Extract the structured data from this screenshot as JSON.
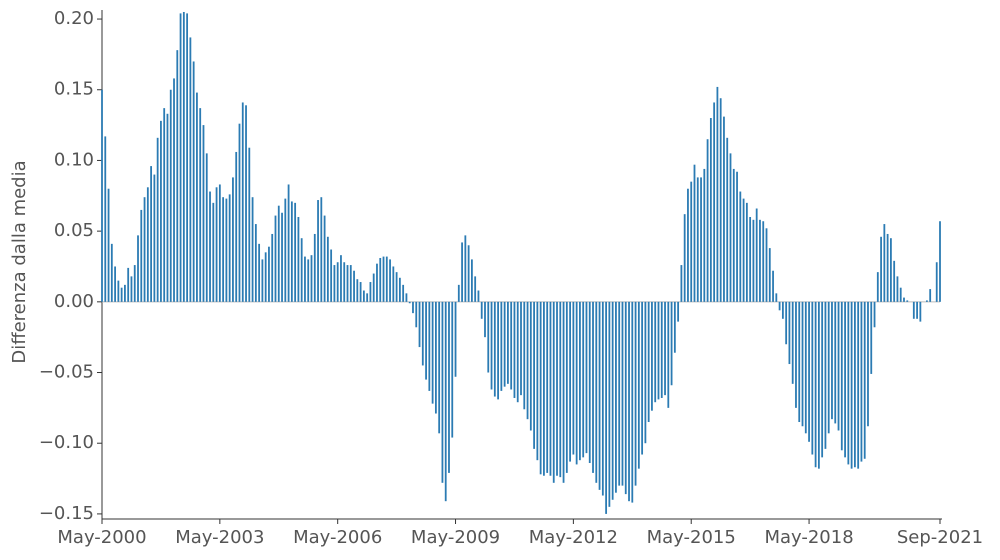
{
  "chart_data": {
    "type": "bar",
    "y_label": "Differenza dalla media",
    "color": "#2b7bb3",
    "xlim": [
      "2000-05",
      "2021-09"
    ],
    "xticks": [
      {
        "value": "2000-05",
        "label": "May-2000"
      },
      {
        "value": "2003-05",
        "label": "May-2003"
      },
      {
        "value": "2006-05",
        "label": "May-2006"
      },
      {
        "value": "2009-05",
        "label": "May-2009"
      },
      {
        "value": "2012-05",
        "label": "May-2012"
      },
      {
        "value": "2015-05",
        "label": "May-2015"
      },
      {
        "value": "2018-05",
        "label": "May-2018"
      },
      {
        "value": "2021-09",
        "label": "Sep-2021"
      }
    ],
    "ylim": [
      -0.1536,
      0.2064
    ],
    "yticks": [
      {
        "value": -0.15,
        "label": "−0.15"
      },
      {
        "value": -0.1,
        "label": "−0.10"
      },
      {
        "value": -0.05,
        "label": "−0.05"
      },
      {
        "value": 0,
        "label": "0.00"
      },
      {
        "value": 0.05,
        "label": "0.05"
      },
      {
        "value": 0.1,
        "label": "0.10"
      },
      {
        "value": 0.15,
        "label": "0.15"
      },
      {
        "value": 0.2,
        "label": "0.20"
      }
    ],
    "x": [
      "2000-05",
      "2000-06",
      "2000-07",
      "2000-08",
      "2000-09",
      "2000-10",
      "2000-11",
      "2000-12",
      "2001-01",
      "2001-02",
      "2001-03",
      "2001-04",
      "2001-05",
      "2001-06",
      "2001-07",
      "2001-08",
      "2001-09",
      "2001-10",
      "2001-11",
      "2001-12",
      "2002-01",
      "2002-02",
      "2002-03",
      "2002-04",
      "2002-05",
      "2002-06",
      "2002-07",
      "2002-08",
      "2002-09",
      "2002-10",
      "2002-11",
      "2002-12",
      "2003-01",
      "2003-02",
      "2003-03",
      "2003-04",
      "2003-05",
      "2003-06",
      "2003-07",
      "2003-08",
      "2003-09",
      "2003-10",
      "2003-11",
      "2003-12",
      "2004-01",
      "2004-02",
      "2004-03",
      "2004-04",
      "2004-05",
      "2004-06",
      "2004-07",
      "2004-08",
      "2004-09",
      "2004-10",
      "2004-11",
      "2004-12",
      "2005-01",
      "2005-02",
      "2005-03",
      "2005-04",
      "2005-05",
      "2005-06",
      "2005-07",
      "2005-08",
      "2005-09",
      "2005-10",
      "2005-11",
      "2005-12",
      "2006-01",
      "2006-02",
      "2006-03",
      "2006-04",
      "2006-05",
      "2006-06",
      "2006-07",
      "2006-08",
      "2006-09",
      "2006-10",
      "2006-11",
      "2006-12",
      "2007-01",
      "2007-02",
      "2007-03",
      "2007-04",
      "2007-05",
      "2007-06",
      "2007-07",
      "2007-08",
      "2007-09",
      "2007-10",
      "2007-11",
      "2007-12",
      "2008-01",
      "2008-02",
      "2008-03",
      "2008-04",
      "2008-05",
      "2008-06",
      "2008-07",
      "2008-08",
      "2008-09",
      "2008-10",
      "2008-11",
      "2008-12",
      "2009-01",
      "2009-02",
      "2009-03",
      "2009-04",
      "2009-05",
      "2009-06",
      "2009-07",
      "2009-08",
      "2009-09",
      "2009-10",
      "2009-11",
      "2009-12",
      "2010-01",
      "2010-02",
      "2010-03",
      "2010-04",
      "2010-05",
      "2010-06",
      "2010-07",
      "2010-08",
      "2010-09",
      "2010-10",
      "2010-11",
      "2010-12",
      "2011-01",
      "2011-02",
      "2011-03",
      "2011-04",
      "2011-05",
      "2011-06",
      "2011-07",
      "2011-08",
      "2011-09",
      "2011-10",
      "2011-11",
      "2011-12",
      "2012-01",
      "2012-02",
      "2012-03",
      "2012-04",
      "2012-05",
      "2012-06",
      "2012-07",
      "2012-08",
      "2012-09",
      "2012-10",
      "2012-11",
      "2012-12",
      "2013-01",
      "2013-02",
      "2013-03",
      "2013-04",
      "2013-05",
      "2013-06",
      "2013-07",
      "2013-08",
      "2013-09",
      "2013-10",
      "2013-11",
      "2013-12",
      "2014-01",
      "2014-02",
      "2014-03",
      "2014-04",
      "2014-05",
      "2014-06",
      "2014-07",
      "2014-08",
      "2014-09",
      "2014-10",
      "2014-11",
      "2014-12",
      "2015-01",
      "2015-02",
      "2015-03",
      "2015-04",
      "2015-05",
      "2015-06",
      "2015-07",
      "2015-08",
      "2015-09",
      "2015-10",
      "2015-11",
      "2015-12",
      "2016-01",
      "2016-02",
      "2016-03",
      "2016-04",
      "2016-05",
      "2016-06",
      "2016-07",
      "2016-08",
      "2016-09",
      "2016-10",
      "2016-11",
      "2016-12",
      "2017-01",
      "2017-02",
      "2017-03",
      "2017-04",
      "2017-05",
      "2017-06",
      "2017-07",
      "2017-08",
      "2017-09",
      "2017-10",
      "2017-11",
      "2017-12",
      "2018-01",
      "2018-02",
      "2018-03",
      "2018-04",
      "2018-05",
      "2018-06",
      "2018-07",
      "2018-08",
      "2018-09",
      "2018-10",
      "2018-11",
      "2018-12",
      "2019-01",
      "2019-02",
      "2019-03",
      "2019-04",
      "2019-05",
      "2019-06",
      "2019-07",
      "2019-08",
      "2019-09",
      "2019-10",
      "2019-11",
      "2019-12",
      "2020-01",
      "2020-02",
      "2020-03",
      "2020-04",
      "2020-05",
      "2020-06",
      "2020-07",
      "2020-08",
      "2020-09",
      "2020-10",
      "2020-11",
      "2020-12",
      "2021-01",
      "2021-02",
      "2021-03",
      "2021-04",
      "2021-05",
      "2021-06",
      "2021-07",
      "2021-08",
      "2021-09"
    ],
    "values": [
      0.15,
      0.117,
      0.08,
      0.041,
      0.025,
      0.015,
      0.01,
      0.012,
      0.024,
      0.018,
      0.026,
      0.047,
      0.065,
      0.074,
      0.081,
      0.096,
      0.09,
      0.116,
      0.128,
      0.137,
      0.133,
      0.15,
      0.158,
      0.178,
      0.204,
      0.205,
      0.204,
      0.187,
      0.17,
      0.148,
      0.137,
      0.125,
      0.105,
      0.078,
      0.07,
      0.081,
      0.083,
      0.074,
      0.073,
      0.076,
      0.088,
      0.106,
      0.126,
      0.141,
      0.139,
      0.109,
      0.074,
      0.055,
      0.041,
      0.03,
      0.035,
      0.039,
      0.048,
      0.061,
      0.068,
      0.063,
      0.073,
      0.083,
      0.071,
      0.07,
      0.06,
      0.045,
      0.032,
      0.03,
      0.033,
      0.048,
      0.072,
      0.074,
      0.061,
      0.046,
      0.037,
      0.026,
      0.028,
      0.033,
      0.028,
      0.026,
      0.026,
      0.022,
      0.016,
      0.014,
      0.008,
      0.006,
      0.014,
      0.02,
      0.027,
      0.031,
      0.032,
      0.032,
      0.03,
      0.025,
      0.021,
      0.017,
      0.012,
      0.006,
      -0.001,
      -0.008,
      -0.018,
      -0.032,
      -0.045,
      -0.055,
      -0.063,
      -0.072,
      -0.079,
      -0.093,
      -0.128,
      -0.141,
      -0.121,
      -0.096,
      -0.053,
      0.012,
      0.042,
      0.047,
      0.04,
      0.03,
      0.018,
      0.008,
      -0.012,
      -0.025,
      -0.05,
      -0.062,
      -0.067,
      -0.069,
      -0.063,
      -0.06,
      -0.058,
      -0.062,
      -0.068,
      -0.071,
      -0.066,
      -0.076,
      -0.083,
      -0.091,
      -0.104,
      -0.112,
      -0.122,
      -0.123,
      -0.121,
      -0.123,
      -0.128,
      -0.123,
      -0.124,
      -0.128,
      -0.121,
      -0.113,
      -0.108,
      -0.115,
      -0.112,
      -0.11,
      -0.107,
      -0.114,
      -0.121,
      -0.128,
      -0.133,
      -0.137,
      -0.15,
      -0.145,
      -0.14,
      -0.135,
      -0.13,
      -0.13,
      -0.136,
      -0.141,
      -0.142,
      -0.13,
      -0.118,
      -0.108,
      -0.1,
      -0.085,
      -0.077,
      -0.071,
      -0.069,
      -0.068,
      -0.066,
      -0.075,
      -0.059,
      -0.036,
      -0.014,
      0.026,
      0.062,
      0.08,
      0.085,
      0.097,
      0.088,
      0.088,
      0.094,
      0.115,
      0.13,
      0.141,
      0.152,
      0.144,
      0.131,
      0.116,
      0.105,
      0.094,
      0.092,
      0.078,
      0.073,
      0.07,
      0.06,
      0.058,
      0.066,
      0.058,
      0.057,
      0.052,
      0.038,
      0.022,
      0.006,
      -0.006,
      -0.012,
      -0.03,
      -0.044,
      -0.058,
      -0.075,
      -0.085,
      -0.088,
      -0.093,
      -0.099,
      -0.108,
      -0.117,
      -0.118,
      -0.11,
      -0.104,
      -0.093,
      -0.083,
      -0.086,
      -0.091,
      -0.105,
      -0.11,
      -0.115,
      -0.118,
      -0.117,
      -0.118,
      -0.113,
      -0.111,
      -0.088,
      -0.051,
      -0.018,
      0.021,
      0.046,
      0.055,
      0.048,
      0.045,
      0.029,
      0.018,
      0.01,
      0.003,
      0.001,
      0.0,
      -0.012,
      -0.012,
      -0.014,
      0.0,
      0.001,
      0.009,
      0.0,
      0.028,
      0.057
    ]
  }
}
